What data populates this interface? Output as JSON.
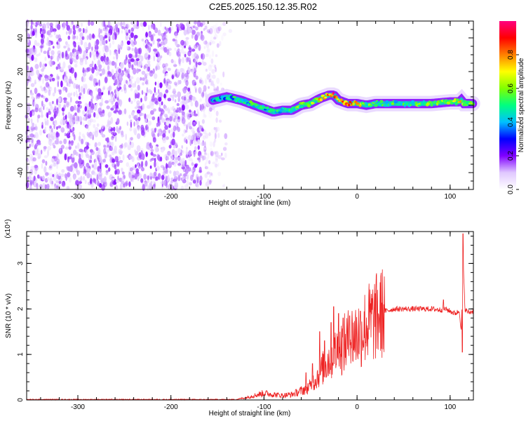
{
  "title": "C2E5.2025.150.12.35.R02",
  "chart_data": [
    {
      "type": "heatmap",
      "title": "C2E5.2025.150.12.35.R02",
      "xlabel": "Height of straight line (km)",
      "ylabel": "Frequency (Hz)",
      "xlim": [
        -355,
        125
      ],
      "ylim": [
        -50,
        50
      ],
      "xticks": [
        -300,
        -200,
        -100,
        0,
        100
      ],
      "yticks": [
        -40,
        -20,
        0,
        20,
        40
      ],
      "colorbar": {
        "label": "Normalized spectral amplitude",
        "range": [
          0,
          1
        ],
        "ticks": [
          0.0,
          0.2,
          0.4,
          0.6,
          0.8
        ],
        "tick_labels": [
          "0.0",
          "0.2",
          "0.4",
          "0.6",
          "0.8"
        ],
        "colormap": [
          "#ffffff",
          "#e0c8ff",
          "#8000ff",
          "#0000ff",
          "#00c0ff",
          "#00ff80",
          "#80ff00",
          "#ffff00",
          "#ff8000",
          "#ff0000",
          "#ff0080"
        ]
      },
      "noise_region": {
        "x": [
          -355,
          -135
        ],
        "amplitude": [
          0.05,
          0.2
        ]
      },
      "signal_ridge": {
        "x": [
          -155,
          -140,
          -125,
          -110,
          -100,
          -90,
          -80,
          -70,
          -60,
          -50,
          -40,
          -30,
          -25,
          -20,
          -10,
          0,
          10,
          20,
          40,
          60,
          80,
          100,
          110,
          112,
          115,
          125
        ],
        "y": [
          3,
          5,
          3,
          0,
          -2,
          -4,
          -3,
          -3,
          0,
          1,
          4,
          6,
          6,
          3,
          1,
          1,
          0,
          1,
          1,
          1,
          1,
          2,
          2,
          3,
          1,
          1
        ],
        "amplitude": [
          0.35,
          0.4,
          0.45,
          0.5,
          0.45,
          0.45,
          0.5,
          0.45,
          0.55,
          0.6,
          0.7,
          0.8,
          0.9,
          0.75,
          0.8,
          0.7,
          0.55,
          0.5,
          0.5,
          0.5,
          0.55,
          0.6,
          0.65,
          0.7,
          0.6,
          0.55
        ]
      }
    },
    {
      "type": "line",
      "xlabel": "Height of straight line (km)",
      "ylabel": "SNR (10 * v/v)",
      "y_multiplier": "(x10⁴)",
      "xlim": [
        -355,
        125
      ],
      "ylim": [
        0,
        3.7
      ],
      "xticks": [
        -300,
        -200,
        -100,
        0,
        100
      ],
      "yticks": [
        0,
        1,
        2,
        3
      ],
      "line_color": "#ee2222",
      "series": [
        {
          "x": [
            -355,
            -130,
            -120,
            -110,
            -100,
            -90,
            -80,
            -70,
            -60,
            -50,
            -45,
            -40,
            -35,
            -30,
            -25,
            -20,
            -15,
            -10,
            -5,
            0,
            5,
            10,
            20,
            30,
            40,
            50,
            60,
            70,
            80,
            90,
            95,
            100,
            105,
            110,
            112,
            114,
            116,
            118,
            120,
            125
          ],
          "y": [
            0.01,
            0.01,
            0.05,
            0.1,
            0.15,
            0.12,
            0.1,
            0.12,
            0.2,
            0.3,
            0.45,
            0.6,
            0.75,
            0.9,
            1.0,
            1.1,
            1.2,
            1.3,
            1.4,
            1.45,
            1.5,
            1.65,
            1.8,
            1.95,
            2.0,
            2.0,
            2.0,
            2.0,
            2.0,
            1.98,
            2.0,
            1.95,
            1.9,
            1.95,
            1.5,
            3.0,
            2.0,
            1.95,
            1.92,
            1.95
          ],
          "spikes": [
            {
              "x": -55,
              "y": 0.6
            },
            {
              "x": -48,
              "y": 0.8
            },
            {
              "x": -40,
              "y": 1.5
            },
            {
              "x": -35,
              "y": 1.3
            },
            {
              "x": -28,
              "y": 1.7
            },
            {
              "x": -25,
              "y": 2.05
            },
            {
              "x": -20,
              "y": 1.9
            },
            {
              "x": -15,
              "y": 1.8
            },
            {
              "x": -8,
              "y": 1.85
            },
            {
              "x": 93,
              "y": 2.2
            },
            {
              "x": 113,
              "y": 1.05
            },
            {
              "x": 114,
              "y": 3.65
            }
          ]
        }
      ]
    }
  ]
}
